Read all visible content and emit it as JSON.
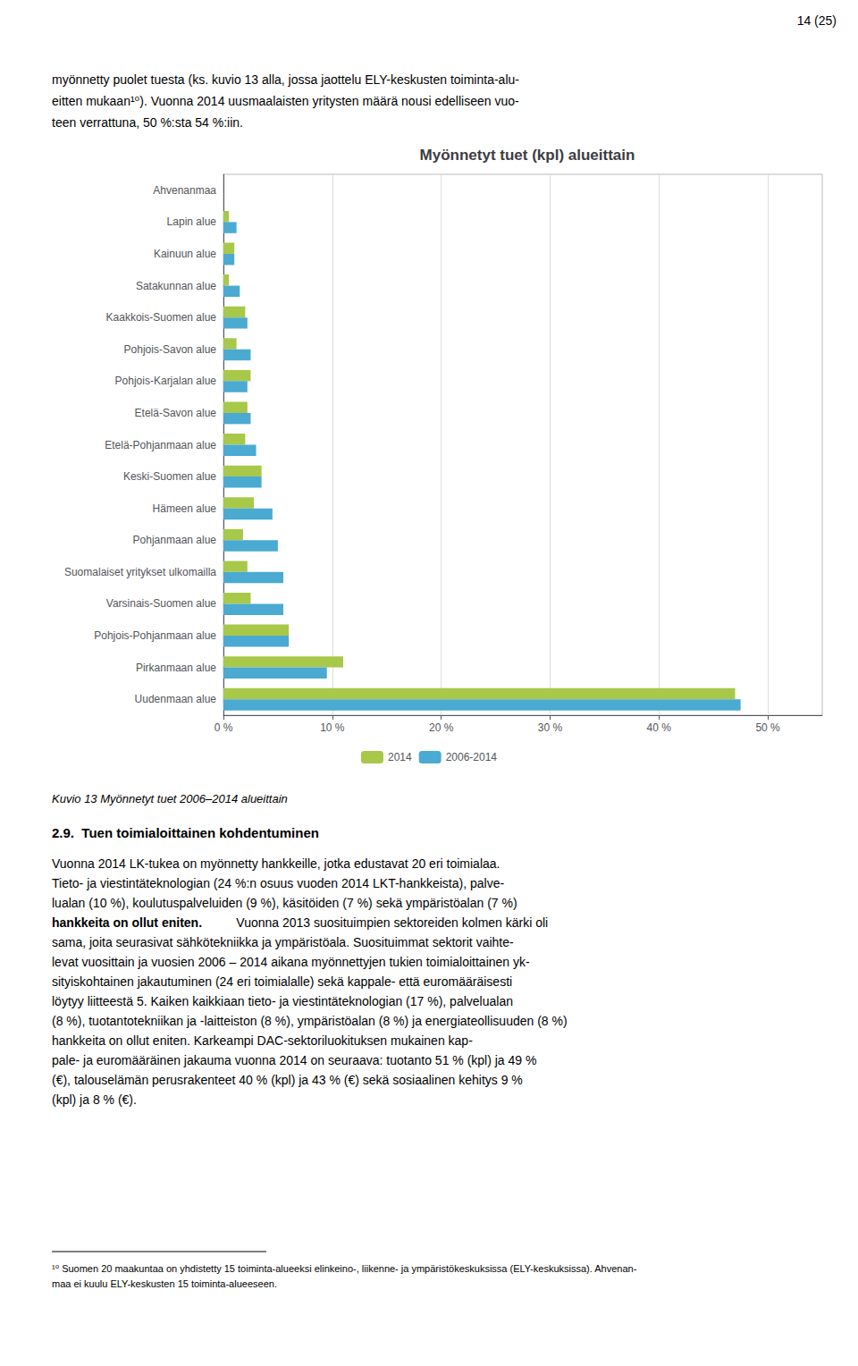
{
  "chart_data": {
    "type": "bar",
    "orientation": "horizontal",
    "title": "Myönnetyt tuet (kpl) alueittain",
    "categories": [
      "Ahvenanmaa",
      "Lapin alue",
      "Kainuun alue",
      "Satakunnan alue",
      "Kaakkois-Suomen alue",
      "Pohjois-Savon alue",
      "Pohjois-Karjalan alue",
      "Etelä-Savon alue",
      "Etelä-Pohjanmaan alue",
      "Keski-Suomen alue",
      "Hämeen alue",
      "Pohjanmaan alue",
      "Suomalaiset yritykset ulkomailla",
      "Varsinais-Suomen alue",
      "Pohjois-Pohjanmaan alue",
      "Pirkanmaan alue",
      "Uudenmaan alue"
    ],
    "series": [
      {
        "name": "2014",
        "color": "#A8C84A",
        "values": [
          0.0,
          0.5,
          1.0,
          0.5,
          2.0,
          1.2,
          2.5,
          2.2,
          2.0,
          3.5,
          2.8,
          1.8,
          2.2,
          2.5,
          6.0,
          11.0,
          47.0
        ]
      },
      {
        "name": "2006-2014",
        "color": "#4AAAD2",
        "values": [
          0.0,
          1.2,
          1.0,
          1.5,
          2.2,
          2.5,
          2.2,
          2.5,
          3.0,
          3.5,
          4.5,
          5.0,
          5.5,
          5.5,
          6.0,
          9.5,
          47.5
        ]
      }
    ],
    "xlim": [
      0,
      55
    ],
    "xticks": [
      {
        "value": 0,
        "label": "0 %"
      },
      {
        "value": 10,
        "label": "10 %"
      },
      {
        "value": 20,
        "label": "20 %"
      },
      {
        "value": 30,
        "label": "30 %"
      },
      {
        "value": 40,
        "label": "40 %"
      },
      {
        "value": 50,
        "label": "50 %"
      }
    ],
    "grid": true,
    "legend": "bottom",
    "annotations": [
      "14 (25)",
      "myönnetty puolet tuesta (ks. kuvio 13 alla, jossa jaottelu ELY-keskusten toiminta-alu-",
      "eitten mukaan¹⁰). Vuonna 2014 uusmaalaisten yritysten määrä nousi edelliseen vuo-",
      "teen verrattuna, 50 %:sta 54 %:iin.",
      "Kuvio 13 Myönnetyt tuet 2006–2014 alueittain",
      "2.9.  Tuen toimialoittainen kohdentuminen",
      "Vuonna 2014 LK-tukea on myönnetty hankkeille, jotka edustavat 20 eri toimialaa.\nTieto- ja viestintäteknologian (24 %:n osuus vuoden 2014 LKT-hankkeista), palve-\nlualan (10 %), koulutuspalveluiden (9 %), käsitöiden (7 %) sekä ympäristöalan (7 %)",
      "hankkeita on ollut eniten.",
      " Vuonna 2013 suosituimpien sektoreiden kolmen kärki oli\nsama, joita seurasivat sähkötekniikka ja ympäristöala. Suosituimmat sektorit vaihte-\nlevat vuosittain ja vuosien 2006 – 2014 aikana myönnettyjen tukien toimialoittainen yk-\nsityiskohtainen jakautuminen (24 eri toimialalle) sekä kappale- että euromääräisesti\nlöytyy liitteestä 5. Kaiken kaikkiaan tieto- ja viestintäteknologian (17 %), palvelualan\n(8 %), tuotantotekniikan ja -laitteiston (8 %), ympäristöalan (8 %) ja energiateollisuuden (8 %) hankkeita on ollut eniten. Karkeampi DAC-sektoriluokituksen mukainen kap-\npale- ja euromääräinen jakauma vuonna 2014 on seuraava: tuotanto 51 % (kpl) ja 49 %\n(€), talouselämän perusrakenteet 40 % (kpl) ja 43 % (€) sekä sosiaalinen kehitys 9 %\n(kpl) ja 8 % (€).",
      "¹⁰ Suomen 20 maakuntaa on yhdistetty 15 toiminta-alueeksi elinkeino-, liikenne- ja ympäristökeskuksissa (ELY-keskuksissa). Ahvenan-",
      "maa ei kuulu ELY-keskusten 15 toiminta-alueeseen."
    ]
  }
}
